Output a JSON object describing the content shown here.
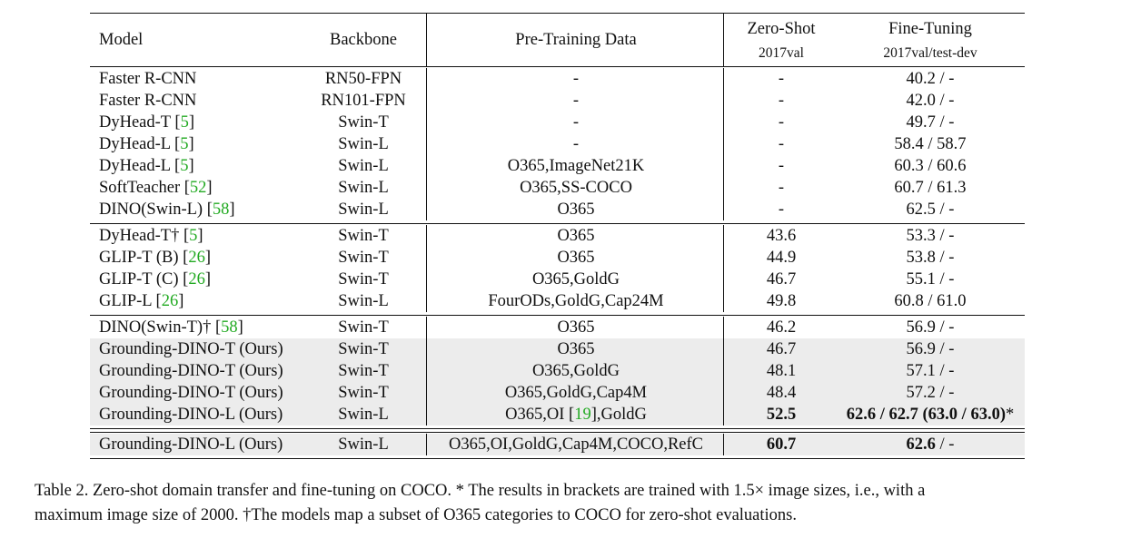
{
  "table": {
    "header": {
      "model": "Model",
      "backbone": "Backbone",
      "pretrain": "Pre-Training Data",
      "zeroshot": "Zero-Shot",
      "zeroshot_sub": "2017val",
      "finetune": "Fine-Tuning",
      "finetune_sub": "2017val/test-dev"
    },
    "groups": [
      {
        "shaded": false,
        "rows": [
          {
            "model": "Faster R-CNN",
            "ref": "",
            "dagger": "",
            "backbone": "RN50-FPN",
            "pretrain": "-",
            "zeroshot": "-",
            "finetune": "40.2 / -"
          },
          {
            "model": "Faster R-CNN",
            "ref": "",
            "dagger": "",
            "backbone": "RN101-FPN",
            "pretrain": "-",
            "zeroshot": "-",
            "finetune": "42.0 / -"
          },
          {
            "model": "DyHead-T",
            "ref": "5",
            "dagger": "",
            "backbone": "Swin-T",
            "pretrain": "-",
            "zeroshot": "-",
            "finetune": "49.7 / -"
          },
          {
            "model": "DyHead-L",
            "ref": "5",
            "dagger": "",
            "backbone": "Swin-L",
            "pretrain": "-",
            "zeroshot": "-",
            "finetune": "58.4 / 58.7"
          },
          {
            "model": "DyHead-L",
            "ref": "5",
            "dagger": "",
            "backbone": "Swin-L",
            "pretrain": "O365,ImageNet21K",
            "zeroshot": "-",
            "finetune": "60.3 / 60.6"
          },
          {
            "model": "SoftTeacher",
            "ref": "52",
            "dagger": "",
            "backbone": "Swin-L",
            "pretrain": "O365,SS-COCO",
            "zeroshot": "-",
            "finetune": "60.7 / 61.3"
          },
          {
            "model": "DINO(Swin-L)",
            "ref": "58",
            "dagger": "",
            "backbone": "Swin-L",
            "pretrain": "O365",
            "zeroshot": "-",
            "finetune": "62.5 / -"
          }
        ]
      },
      {
        "shaded": false,
        "rows": [
          {
            "model": "DyHead-T",
            "ref": "5",
            "dagger": "†",
            "backbone": "Swin-T",
            "pretrain": "O365",
            "zeroshot": "43.6",
            "finetune": "53.3 / -"
          },
          {
            "model": "GLIP-T (B)",
            "ref": "26",
            "dagger": "",
            "backbone": "Swin-T",
            "pretrain": "O365",
            "zeroshot": "44.9",
            "finetune": "53.8 / -"
          },
          {
            "model": "GLIP-T (C)",
            "ref": "26",
            "dagger": "",
            "backbone": "Swin-T",
            "pretrain": "O365,GoldG",
            "zeroshot": "46.7",
            "finetune": "55.1 / -"
          },
          {
            "model": "GLIP-L",
            "ref": "26",
            "dagger": "",
            "backbone": "Swin-L",
            "pretrain": "FourODs,GoldG,Cap24M",
            "zeroshot": "49.8",
            "finetune": "60.8 / 61.0"
          }
        ]
      },
      {
        "shaded": false,
        "rows": [
          {
            "model": "DINO(Swin-T)",
            "ref": "58",
            "dagger": "†",
            "backbone": "Swin-T",
            "pretrain": "O365",
            "zeroshot": "46.2",
            "finetune": "56.9 / -",
            "shade": false
          },
          {
            "model": "Grounding-DINO-T (Ours)",
            "ref": "",
            "dagger": "",
            "backbone": "Swin-T",
            "pretrain": "O365",
            "zeroshot": "46.7",
            "finetune": "56.9 / -",
            "shade": true
          },
          {
            "model": "Grounding-DINO-T (Ours)",
            "ref": "",
            "dagger": "",
            "backbone": "Swin-T",
            "pretrain": "O365,GoldG",
            "zeroshot": "48.1",
            "finetune": "57.1 / -",
            "shade": true
          },
          {
            "model": "Grounding-DINO-T (Ours)",
            "ref": "",
            "dagger": "",
            "backbone": "Swin-T",
            "pretrain": "O365,GoldG,Cap4M",
            "zeroshot": "48.4",
            "finetune": "57.2 / -",
            "shade": true
          },
          {
            "model": "Grounding-DINO-L (Ours)",
            "ref": "",
            "dagger": "",
            "backbone": "Swin-L",
            "pretrain_pre": "O365,OI [",
            "pretrain_ref": "19",
            "pretrain_post": "],GoldG",
            "zeroshot": "52.5",
            "zeroshot_bold": true,
            "finetune": "62.6 / 62.7 (63.0 / 63.0)",
            "finetune_tail": "*",
            "finetune_bold": true,
            "shade": true
          }
        ]
      },
      {
        "shaded": true,
        "rows": [
          {
            "model": "Grounding-DINO-L (Ours)",
            "ref": "",
            "dagger": "",
            "backbone": "Swin-L",
            "pretrain": "O365,OI,GoldG,Cap4M,COCO,RefC",
            "zeroshot": "60.7",
            "zeroshot_bold": true,
            "finetune": "62.6",
            "finetune_tail": " / -",
            "finetune_bold": true,
            "shade": true
          }
        ]
      }
    ]
  },
  "caption": {
    "line1": "Table 2.  Zero-shot domain transfer and fine-tuning on COCO. * The results in brackets are trained with 1.5× image sizes, i.e., with a",
    "line2": "maximum image size of 2000. †The models map a subset of O365 categories to COCO for zero-shot evaluations."
  }
}
